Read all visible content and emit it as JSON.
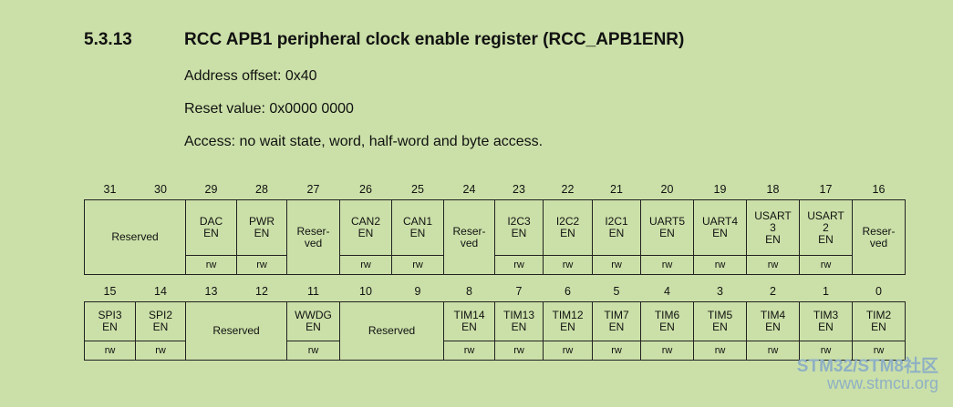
{
  "section": {
    "number": "5.3.13",
    "title": "RCC APB1 peripheral clock enable register (RCC_APB1ENR)",
    "address_offset": "Address offset: 0x40",
    "reset_value": "Reset value: 0x0000 0000",
    "access": "Access: no wait state, word, half-word and byte access."
  },
  "upper": {
    "bits": [
      "31",
      "30",
      "29",
      "28",
      "27",
      "26",
      "25",
      "24",
      "23",
      "22",
      "21",
      "20",
      "19",
      "18",
      "17",
      "16"
    ],
    "fields": [
      {
        "label": "Reserved",
        "span": 2,
        "rw": null
      },
      {
        "label": "DAC\nEN",
        "span": 1,
        "rw": "rw"
      },
      {
        "label": "PWR\nEN",
        "span": 1,
        "rw": "rw"
      },
      {
        "label": "Reser-\nved",
        "span": 1,
        "rw": null
      },
      {
        "label": "CAN2\nEN",
        "span": 1,
        "rw": "rw"
      },
      {
        "label": "CAN1\nEN",
        "span": 1,
        "rw": "rw"
      },
      {
        "label": "Reser-\nved",
        "span": 1,
        "rw": null
      },
      {
        "label": "I2C3\nEN",
        "span": 1,
        "rw": "rw"
      },
      {
        "label": "I2C2\nEN",
        "span": 1,
        "rw": "rw"
      },
      {
        "label": "I2C1\nEN",
        "span": 1,
        "rw": "rw"
      },
      {
        "label": "UART5\nEN",
        "span": 1,
        "rw": "rw"
      },
      {
        "label": "UART4\nEN",
        "span": 1,
        "rw": "rw"
      },
      {
        "label": "USART\n3\nEN",
        "span": 1,
        "rw": "rw"
      },
      {
        "label": "USART\n2\nEN",
        "span": 1,
        "rw": "rw"
      },
      {
        "label": "Reser-\nved",
        "span": 1,
        "rw": null
      }
    ]
  },
  "lower": {
    "bits": [
      "15",
      "14",
      "13",
      "12",
      "11",
      "10",
      "9",
      "8",
      "7",
      "6",
      "5",
      "4",
      "3",
      "2",
      "1",
      "0"
    ],
    "fields": [
      {
        "label": "SPI3\nEN",
        "span": 1,
        "rw": "rw"
      },
      {
        "label": "SPI2\nEN",
        "span": 1,
        "rw": "rw"
      },
      {
        "label": "Reserved",
        "span": 2,
        "rw": null
      },
      {
        "label": "WWDG\nEN",
        "span": 1,
        "rw": "rw"
      },
      {
        "label": "Reserved",
        "span": 2,
        "rw": null
      },
      {
        "label": "TIM14\nEN",
        "span": 1,
        "rw": "rw"
      },
      {
        "label": "TIM13\nEN",
        "span": 1,
        "rw": "rw"
      },
      {
        "label": "TIM12\nEN",
        "span": 1,
        "rw": "rw"
      },
      {
        "label": "TIM7\nEN",
        "span": 1,
        "rw": "rw"
      },
      {
        "label": "TIM6\nEN",
        "span": 1,
        "rw": "rw"
      },
      {
        "label": "TIM5\nEN",
        "span": 1,
        "rw": "rw"
      },
      {
        "label": "TIM4\nEN",
        "span": 1,
        "rw": "rw"
      },
      {
        "label": "TIM3\nEN",
        "span": 1,
        "rw": "rw"
      },
      {
        "label": "TIM2\nEN",
        "span": 1,
        "rw": "rw"
      }
    ]
  },
  "watermark": {
    "line1": "STM32/STM8社区",
    "line2": "www.stmcu.org"
  }
}
